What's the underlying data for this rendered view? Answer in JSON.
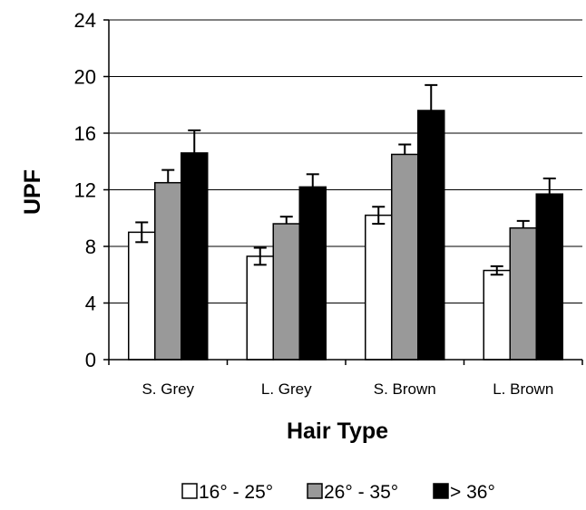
{
  "chart_data": {
    "type": "bar",
    "title": "",
    "xlabel": "Hair Type",
    "ylabel": "UPF",
    "ylim": [
      0,
      24
    ],
    "yticks": [
      0,
      4,
      8,
      12,
      16,
      20,
      24
    ],
    "grid": true,
    "legend_position": "bottom",
    "categories": [
      "S. Grey",
      "L. Grey",
      "S. Brown",
      "L. Brown"
    ],
    "series": [
      {
        "name": "16° - 25°",
        "color": "#ffffff",
        "values": [
          9.0,
          7.3,
          10.2,
          6.3
        ],
        "errors": [
          0.7,
          0.6,
          0.6,
          0.3
        ]
      },
      {
        "name": "26° - 35°",
        "color": "#999999",
        "values": [
          12.5,
          9.6,
          14.5,
          9.3
        ],
        "errors": [
          0.9,
          0.5,
          0.7,
          0.5
        ]
      },
      {
        "name": "> 36°",
        "color": "#000000",
        "values": [
          14.6,
          12.2,
          17.6,
          11.7
        ],
        "errors": [
          1.6,
          0.9,
          1.8,
          1.1
        ]
      }
    ]
  }
}
